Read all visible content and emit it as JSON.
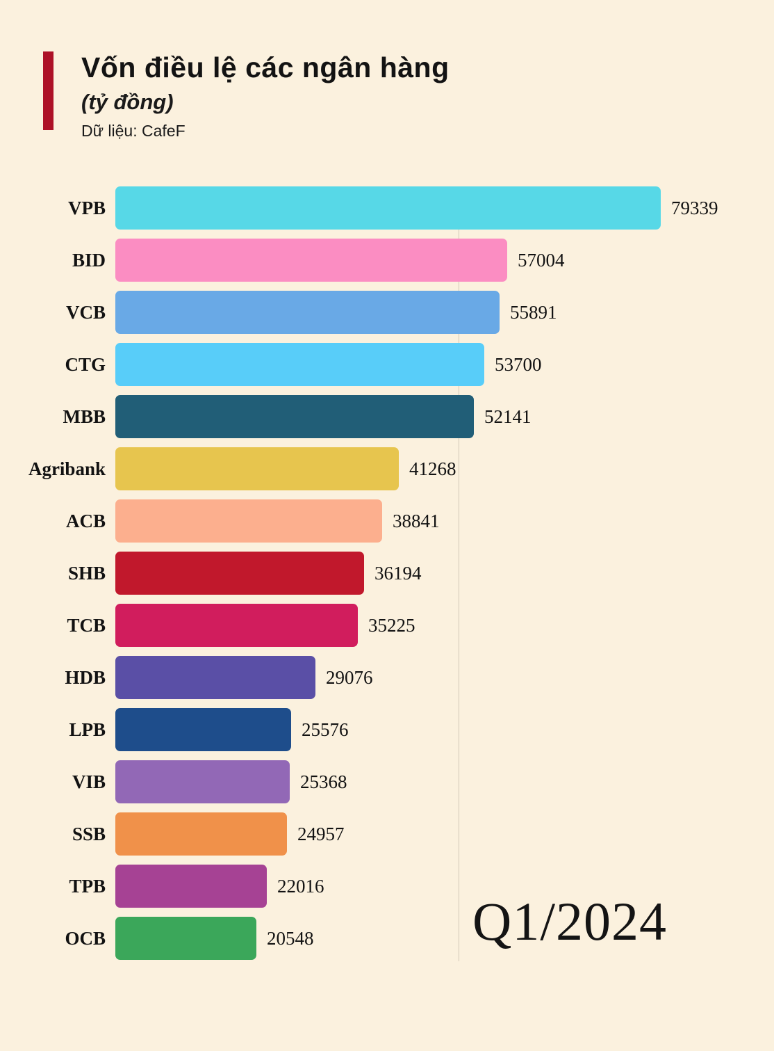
{
  "header": {
    "title": "Vốn điều lệ các ngân hàng",
    "subtitle": "(tỷ đồng)",
    "source": "Dữ liệu: CafeF"
  },
  "period_label": "Q1/2024",
  "chart_data": {
    "type": "bar",
    "orientation": "horizontal",
    "title": "Vốn điều lệ các ngân hàng (tỷ đồng)",
    "source": "Dữ liệu: CafeF",
    "categories": [
      "VPB",
      "BID",
      "VCB",
      "CTG",
      "MBB",
      "Agribank",
      "ACB",
      "SHB",
      "TCB",
      "HDB",
      "LPB",
      "VIB",
      "SSB",
      "TPB",
      "OCB"
    ],
    "values": [
      79339,
      57004,
      55891,
      53700,
      52141,
      41268,
      38841,
      36194,
      35225,
      29076,
      25576,
      25368,
      24957,
      22016,
      20548
    ],
    "colors": [
      "#57d8e7",
      "#fb8dc2",
      "#69a9e6",
      "#58cdf9",
      "#215e77",
      "#e7c54e",
      "#fcaf8e",
      "#c1182c",
      "#d11d5d",
      "#5a4fa6",
      "#1e4d8b",
      "#9268b6",
      "#f0914a",
      "#a64294",
      "#3ba75a"
    ],
    "xlim": [
      0,
      80000
    ],
    "value_labels": true,
    "gridline_value": 50000,
    "legend": "none",
    "period": "Q1/2024"
  }
}
